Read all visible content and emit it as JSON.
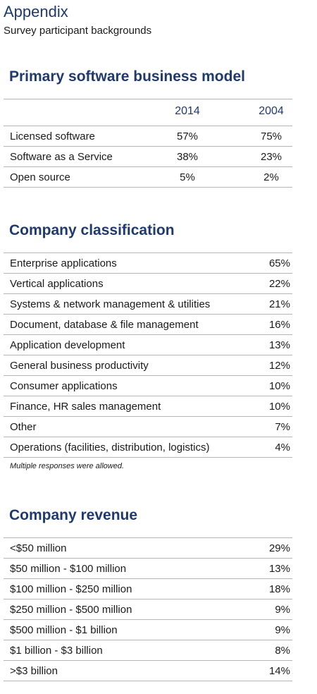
{
  "header": {
    "title": "Appendix",
    "subtitle": "Survey participant backgrounds"
  },
  "sections": [
    {
      "title": "Primary software business model",
      "columns": [
        "2014",
        "2004"
      ],
      "rows": [
        [
          "Licensed software",
          "57%",
          "75%"
        ],
        [
          "Software as a Service",
          "38%",
          "23%"
        ],
        [
          "Open source",
          "5%",
          "2%"
        ]
      ]
    },
    {
      "title": "Company classification",
      "rows": [
        [
          "Enterprise applications",
          "65%"
        ],
        [
          "Vertical applications",
          "22%"
        ],
        [
          "Systems & network management & utilities",
          "21%"
        ],
        [
          "Document, database & file management",
          "16%"
        ],
        [
          "Application development",
          "13%"
        ],
        [
          "General business productivity",
          "12%"
        ],
        [
          "Consumer applications",
          "10%"
        ],
        [
          "Finance, HR sales management",
          "10%"
        ],
        [
          "Other",
          "7%"
        ],
        [
          "Operations (facilities, distribution, logistics)",
          "4%"
        ]
      ],
      "note": "Multiple responses were allowed."
    },
    {
      "title": "Company revenue",
      "rows": [
        [
          "<$50 million",
          "29%"
        ],
        [
          "$50 million - $100 million",
          "13%"
        ],
        [
          "$100 million - $250 million",
          "18%"
        ],
        [
          "$250 million - $500 million",
          "9%"
        ],
        [
          "$500 million - $1 billion",
          "9%"
        ],
        [
          "$1 billion - $3 billion",
          "8%"
        ],
        [
          ">$3 billion",
          "14%"
        ]
      ]
    }
  ]
}
